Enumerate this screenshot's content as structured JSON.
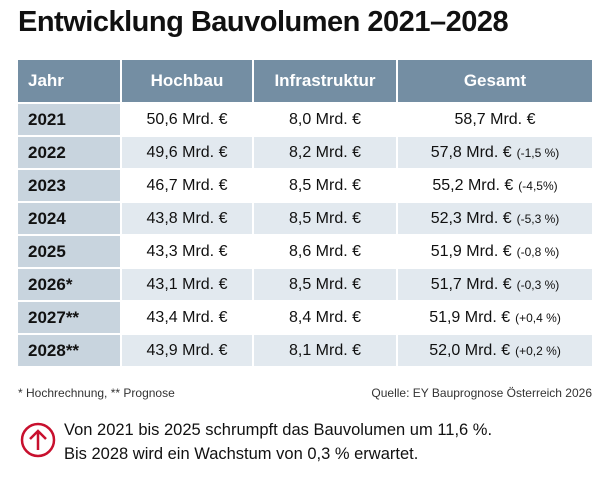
{
  "title": "Entwicklung Bauvolumen 2021–2028",
  "table": {
    "header": [
      "Jahr",
      "Hochbau",
      "Infrastruktur",
      "Gesamt"
    ],
    "rows": [
      {
        "year": "2021",
        "hochbau": "50,6 Mrd. €",
        "infrastruktur": "8,0 Mrd. €",
        "gesamt": "58,7 Mrd. €"
      },
      {
        "year": "2022",
        "hochbau": "49,6 Mrd. €",
        "infrastruktur": "8,2 Mrd. €",
        "gesamt": "57,8 Mrd. €",
        "change": "(-1,5 %)"
      },
      {
        "year": "2023",
        "hochbau": "46,7 Mrd. €",
        "infrastruktur": "8,5 Mrd. €",
        "gesamt": "55,2 Mrd. €",
        "change": "(-4,5%)"
      },
      {
        "year": "2024",
        "hochbau": "43,8 Mrd. €",
        "infrastruktur": "8,5 Mrd. €",
        "gesamt": "52,3 Mrd. €",
        "change": "(-5,3 %)"
      },
      {
        "year": "2025",
        "hochbau": "43,3 Mrd. €",
        "infrastruktur": "8,6 Mrd. €",
        "gesamt": "51,9 Mrd. €",
        "change": "(-0,8 %)"
      },
      {
        "year": "2026*",
        "hochbau": "43,1 Mrd. €",
        "infrastruktur": "8,5 Mrd. €",
        "gesamt": "51,7 Mrd. €",
        "change": "(-0,3 %)"
      },
      {
        "year": "2027**",
        "hochbau": "43,4 Mrd. €",
        "infrastruktur": "8,4 Mrd. €",
        "gesamt": "51,9 Mrd. €",
        "change": "(+0,4 %)"
      },
      {
        "year": "2028**",
        "hochbau": "43,9 Mrd. €",
        "infrastruktur": "8,1 Mrd. €",
        "gesamt": "52,0 Mrd. €",
        "change": "(+0,2 %)"
      }
    ]
  },
  "footnote": "* Hochrechnung, ** Prognose",
  "source": "Quelle: EY Bauprognose Österreich 2026",
  "summary": [
    "Von 2021 bis 2025 schrumpft das Bauvolumen um 11,6 %.",
    "Bis 2028 wird ein Wachstum von 0,3 % erwartet."
  ]
}
